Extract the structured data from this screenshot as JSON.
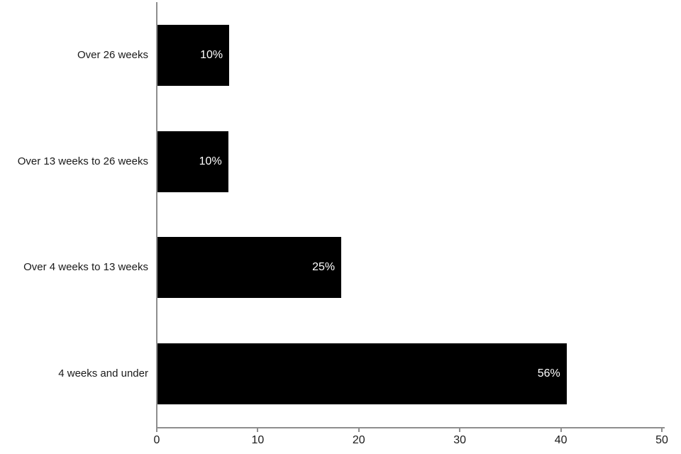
{
  "chart_data": {
    "type": "bar",
    "orientation": "horizontal",
    "title": "",
    "xlabel": "",
    "ylabel": "",
    "grid": false,
    "legend": false,
    "categories": [
      "Over 26 weeks",
      "Over 13 weeks to 26 weeks",
      "Over 4 weeks to 13 weeks",
      "4 weeks and under"
    ],
    "values": [
      7.1,
      7,
      18.2,
      40.5
    ],
    "bar_labels": [
      "10%",
      "10%",
      "25%",
      "56%"
    ],
    "x_ticks": [
      "0",
      "10",
      "20",
      "30",
      "40",
      "50"
    ],
    "xlim": [
      0,
      50
    ],
    "bar_color": "#000000",
    "bar_label_color": "#ffffff",
    "axis_color": "#8e8e8e",
    "text_color": "#1a1a1a"
  }
}
